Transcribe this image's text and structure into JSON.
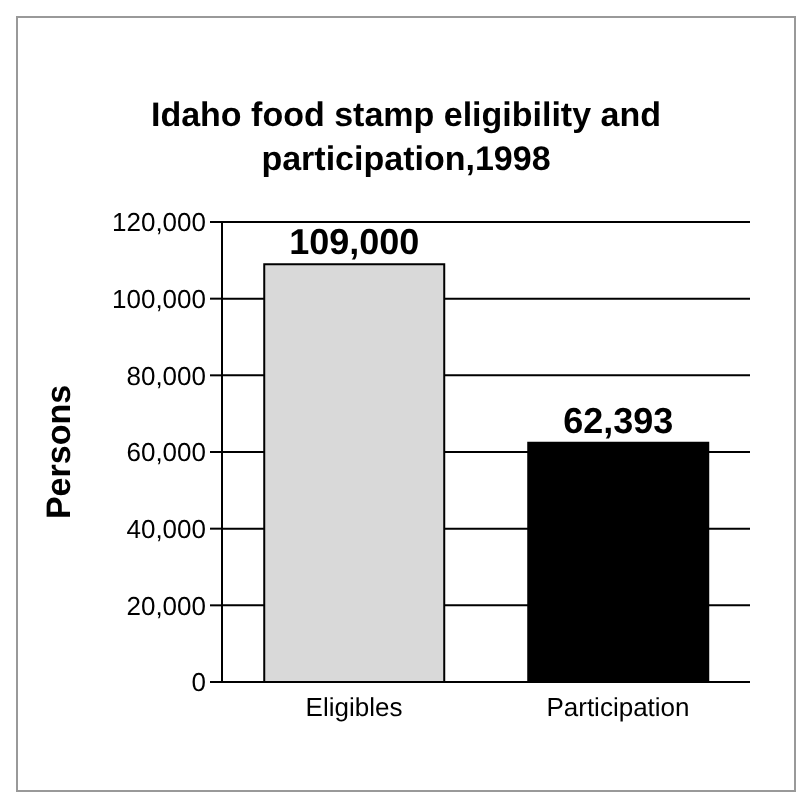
{
  "chart_data": {
    "type": "bar",
    "title": "Idaho food stamp eligibility and participation,1998",
    "ylabel": "Persons",
    "categories": [
      "Eligibles",
      "Participation"
    ],
    "values": [
      109000,
      62393
    ],
    "value_labels": [
      "109,000",
      "62,393"
    ],
    "colors": [
      "#d9d9d9",
      "#000000"
    ],
    "ylim": [
      0,
      120000
    ],
    "yticks": [
      0,
      {
        "value": 20000,
        "label": "20,000"
      },
      {
        "value": 40000,
        "label": "40,000"
      },
      {
        "value": 60000,
        "label": "60,000"
      },
      {
        "value": 80000,
        "label": "80,000"
      },
      {
        "value": 100000,
        "label": "100,000"
      },
      {
        "value": 120000,
        "label": "120,000"
      }
    ],
    "grid": "y"
  }
}
